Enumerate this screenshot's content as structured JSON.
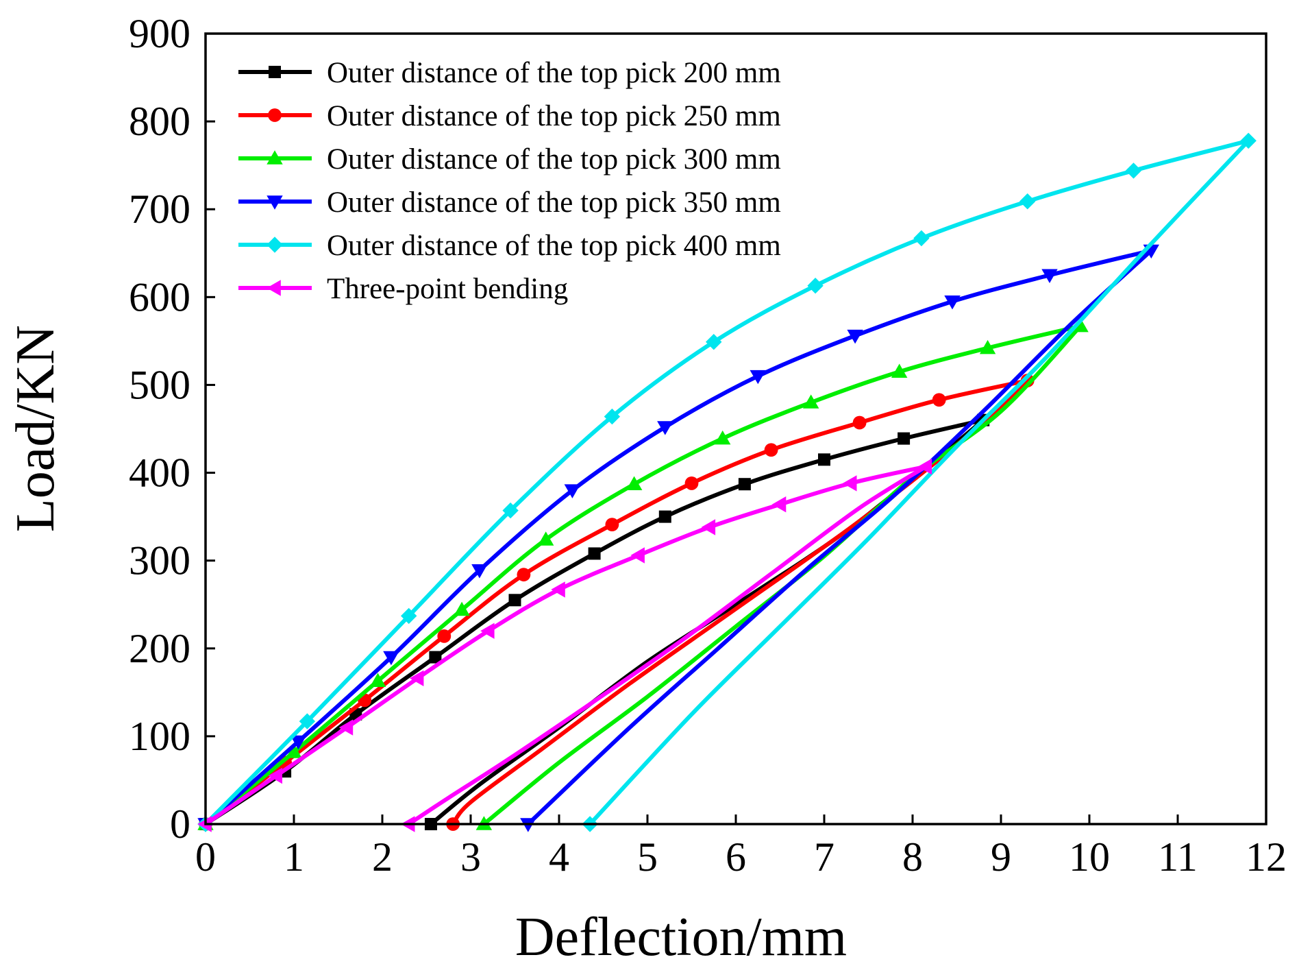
{
  "chart_data": {
    "type": "line",
    "title": "",
    "xlabel": "Deflection/mm",
    "ylabel": "Load/KN",
    "xlim": [
      0,
      12
    ],
    "ylim": [
      0,
      900
    ],
    "xticks": [
      0,
      1,
      2,
      3,
      4,
      5,
      6,
      7,
      8,
      9,
      10,
      11,
      12
    ],
    "yticks": [
      0,
      100,
      200,
      300,
      400,
      500,
      600,
      700,
      800,
      900
    ],
    "grid": false,
    "legend_position": "top-left",
    "series": [
      {
        "name": "Outer distance of the top pick 200 mm",
        "color": "#000000",
        "marker": "square",
        "loading": [
          [
            0,
            0
          ],
          [
            0.9,
            60
          ],
          [
            1.7,
            125
          ],
          [
            2.6,
            190
          ],
          [
            3.5,
            255
          ],
          [
            4.4,
            308
          ],
          [
            5.2,
            350
          ],
          [
            6.1,
            387
          ],
          [
            7.0,
            415
          ],
          [
            7.9,
            439
          ],
          [
            8.8,
            460
          ]
        ],
        "unloading": [
          [
            8.8,
            460
          ],
          [
            8.2,
            410
          ],
          [
            7.2,
            330
          ],
          [
            6.0,
            250
          ],
          [
            5.0,
            185
          ],
          [
            4.0,
            110
          ],
          [
            3.1,
            45
          ],
          [
            2.55,
            0
          ]
        ]
      },
      {
        "name": "Outer distance of the top pick 250 mm",
        "color": "#ff0000",
        "marker": "circle",
        "loading": [
          [
            0,
            0
          ],
          [
            0.9,
            70
          ],
          [
            1.8,
            141
          ],
          [
            2.7,
            214
          ],
          [
            3.6,
            284
          ],
          [
            4.6,
            341
          ],
          [
            5.5,
            388
          ],
          [
            6.4,
            426
          ],
          [
            7.4,
            457
          ],
          [
            8.3,
            483
          ],
          [
            9.3,
            505
          ]
        ],
        "unloading": [
          [
            9.3,
            505
          ],
          [
            8.6,
            440
          ],
          [
            7.4,
            345
          ],
          [
            6.0,
            245
          ],
          [
            4.8,
            160
          ],
          [
            3.8,
            85
          ],
          [
            3.0,
            25
          ],
          [
            2.8,
            0
          ]
        ]
      },
      {
        "name": "Outer distance of the top pick 300 mm",
        "color": "#00ee00",
        "marker": "triangle-up",
        "loading": [
          [
            0,
            0
          ],
          [
            1.0,
            82
          ],
          [
            1.95,
            163
          ],
          [
            2.9,
            244
          ],
          [
            3.85,
            324
          ],
          [
            4.85,
            387
          ],
          [
            5.85,
            439
          ],
          [
            6.85,
            480
          ],
          [
            7.85,
            515
          ],
          [
            8.85,
            542
          ],
          [
            9.9,
            567
          ]
        ],
        "unloading": [
          [
            9.9,
            567
          ],
          [
            9.0,
            470
          ],
          [
            8.0,
            395
          ],
          [
            7.0,
            305
          ],
          [
            6.0,
            225
          ],
          [
            5.0,
            145
          ],
          [
            4.0,
            70
          ],
          [
            3.15,
            0
          ]
        ]
      },
      {
        "name": "Outer distance of the top pick 350 mm",
        "color": "#0000ff",
        "marker": "triangle-down",
        "loading": [
          [
            0,
            0
          ],
          [
            1.05,
            94
          ],
          [
            2.1,
            190
          ],
          [
            3.1,
            289
          ],
          [
            4.15,
            380
          ],
          [
            5.2,
            452
          ],
          [
            6.25,
            510
          ],
          [
            7.35,
            556
          ],
          [
            8.45,
            595
          ],
          [
            9.55,
            625
          ],
          [
            10.7,
            653
          ]
        ],
        "unloading": [
          [
            10.7,
            653
          ],
          [
            9.8,
            570
          ],
          [
            8.8,
            470
          ],
          [
            7.8,
            375
          ],
          [
            6.8,
            290
          ],
          [
            5.8,
            200
          ],
          [
            4.8,
            110
          ],
          [
            3.65,
            0
          ]
        ]
      },
      {
        "name": "Outer distance of the top pick 400 mm",
        "color": "#00e5ee",
        "marker": "diamond",
        "loading": [
          [
            0,
            0
          ],
          [
            1.15,
            117
          ],
          [
            2.3,
            237
          ],
          [
            3.45,
            357
          ],
          [
            4.6,
            464
          ],
          [
            5.75,
            549
          ],
          [
            6.9,
            613
          ],
          [
            8.1,
            667
          ],
          [
            9.3,
            709
          ],
          [
            10.5,
            744
          ],
          [
            11.8,
            778
          ]
        ],
        "unloading": [
          [
            11.8,
            778
          ],
          [
            10.6,
            650
          ],
          [
            9.5,
            530
          ],
          [
            8.5,
            430
          ],
          [
            7.5,
            325
          ],
          [
            6.5,
            225
          ],
          [
            5.5,
            125
          ],
          [
            4.35,
            0
          ]
        ]
      },
      {
        "name": "Three-point bending",
        "color": "#ff00ff",
        "marker": "triangle-left",
        "loading": [
          [
            0,
            0
          ],
          [
            0.8,
            55
          ],
          [
            1.6,
            110
          ],
          [
            2.4,
            166
          ],
          [
            3.2,
            220
          ],
          [
            4.0,
            267
          ],
          [
            4.9,
            306
          ],
          [
            5.7,
            338
          ],
          [
            6.5,
            364
          ],
          [
            7.3,
            388
          ],
          [
            8.15,
            407
          ]
        ],
        "unloading": [
          [
            8.15,
            407
          ],
          [
            7.4,
            360
          ],
          [
            6.4,
            285
          ],
          [
            5.4,
            210
          ],
          [
            4.4,
            140
          ],
          [
            3.4,
            72
          ],
          [
            2.75,
            30
          ],
          [
            2.3,
            0
          ]
        ]
      }
    ]
  }
}
